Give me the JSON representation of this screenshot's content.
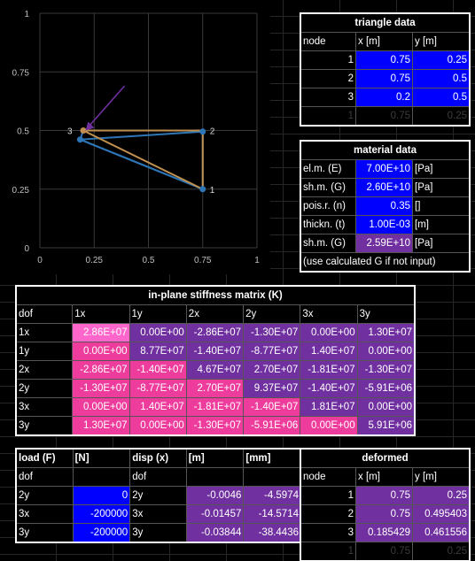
{
  "chart": {
    "ytick_labels": [
      "1",
      "0.75",
      "0.5",
      "0.25",
      "0"
    ],
    "xtick_labels": [
      "0",
      "0.25",
      "0.5",
      "0.75",
      "1"
    ],
    "node_labels": [
      "1",
      "2",
      "3"
    ],
    "colors": {
      "orig": "#2e75b6",
      "deformed": "#c09050",
      "arrow": "#7030a0"
    }
  },
  "chart_data": {
    "type": "scatter",
    "xlim": [
      0,
      1
    ],
    "ylim": [
      0,
      1
    ],
    "series": [
      {
        "points": [
          [
            0.75,
            0.25
          ],
          [
            0.75,
            0.5
          ],
          [
            0.2,
            0.5
          ],
          [
            0.75,
            0.25
          ]
        ]
      },
      {
        "points": [
          [
            0.75,
            0.25
          ],
          [
            0.75,
            0.495403
          ],
          [
            0.185429,
            0.461556
          ],
          [
            0.75,
            0.25
          ]
        ]
      },
      {
        "points": [
          [
            0.2,
            0.5
          ],
          [
            0.185429,
            0.461556
          ],
          [
            0.75,
            0.25
          ]
        ]
      }
    ],
    "arrow": {
      "from": [
        0.39,
        0.69
      ],
      "to": [
        0.21,
        0.5
      ]
    }
  },
  "triangle": {
    "title": "triangle data",
    "headers": [
      "node",
      "x [m]",
      "y [m]"
    ],
    "rows": [
      [
        "1",
        "0.75",
        "0.25"
      ],
      [
        "2",
        "0.75",
        "0.5"
      ],
      [
        "3",
        "0.2",
        "0.5"
      ]
    ],
    "dim_row": [
      "1",
      "0.75",
      "0.25"
    ]
  },
  "material": {
    "title": "material data",
    "rows": [
      {
        "label": "el.m. (E)",
        "value": "7.00E+10",
        "unit": "[Pa]"
      },
      {
        "label": "sh.m. (G)",
        "value": "2.60E+10",
        "unit": "[Pa]"
      },
      {
        "label": "pois.r. (n)",
        "value": "0.35",
        "unit": "[]"
      },
      {
        "label": "thickn. (t)",
        "value": "1.00E-03",
        "unit": "[m]"
      },
      {
        "label": "sh.m. (G)",
        "value": "2.59E+10",
        "unit": "[Pa]"
      }
    ],
    "note": "(use calculated G if not input)"
  },
  "stiffness": {
    "title": "in-plane stiffness matrix (K)",
    "headers": [
      "dof",
      "1x",
      "1y",
      "2x",
      "2y",
      "3x",
      "3y"
    ],
    "rows": [
      [
        "1x",
        "2.86E+07",
        "0.00E+00",
        "-2.86E+07",
        "-1.30E+07",
        "0.00E+00",
        "1.30E+07"
      ],
      [
        "1y",
        "0.00E+00",
        "8.77E+07",
        "-1.40E+07",
        "-8.77E+07",
        "1.40E+07",
        "0.00E+00"
      ],
      [
        "2x",
        "-2.86E+07",
        "-1.40E+07",
        "4.67E+07",
        "2.70E+07",
        "-1.81E+07",
        "-1.30E+07"
      ],
      [
        "2y",
        "-1.30E+07",
        "-8.77E+07",
        "2.70E+07",
        "9.37E+07",
        "-1.40E+07",
        "-5.91E+06"
      ],
      [
        "3x",
        "0.00E+00",
        "1.40E+07",
        "-1.81E+07",
        "-1.40E+07",
        "1.81E+07",
        "0.00E+00"
      ],
      [
        "3y",
        "1.30E+07",
        "0.00E+00",
        "-1.30E+07",
        "-5.91E+06",
        "0.00E+00",
        "5.91E+06"
      ]
    ],
    "colors": [
      [
        "pink",
        "vio",
        "vio",
        "vio",
        "vio",
        "vio"
      ],
      [
        "pinkd",
        "vio",
        "vio",
        "vio",
        "vio",
        "vio"
      ],
      [
        "pinkd",
        "pinkd",
        "vio",
        "vio",
        "vio",
        "vio"
      ],
      [
        "pinkd",
        "pinkd",
        "pinkd",
        "vio",
        "vio",
        "vio"
      ],
      [
        "pinkd",
        "pinkd",
        "pinkd",
        "pinkd",
        "vio",
        "vio"
      ],
      [
        "pinkd",
        "pinkd",
        "pinkd",
        "pinkd",
        "pinkd",
        "vio"
      ]
    ]
  },
  "loads": {
    "headers": [
      "load (F)",
      "[N]",
      "disp (x)",
      "[m]",
      "[mm]"
    ],
    "sub": [
      "dof",
      "",
      "dof",
      "",
      ""
    ],
    "rows": [
      [
        "2y",
        "0",
        "2y",
        "-0.0046",
        "-4.5974"
      ],
      [
        "3x",
        "-200000",
        "3x",
        "-0.01457",
        "-14.5714"
      ],
      [
        "3y",
        "-200000",
        "3y",
        "-0.03844",
        "-38.4436"
      ]
    ]
  },
  "deformed": {
    "title": "deformed",
    "headers": [
      "node",
      "x [m]",
      "y [m]"
    ],
    "rows": [
      [
        "1",
        "0.75",
        "0.25"
      ],
      [
        "2",
        "0.75",
        "0.495403"
      ],
      [
        "3",
        "0.185429",
        "0.461556"
      ]
    ],
    "dim_row": [
      "1",
      "0.75",
      "0.25"
    ]
  }
}
